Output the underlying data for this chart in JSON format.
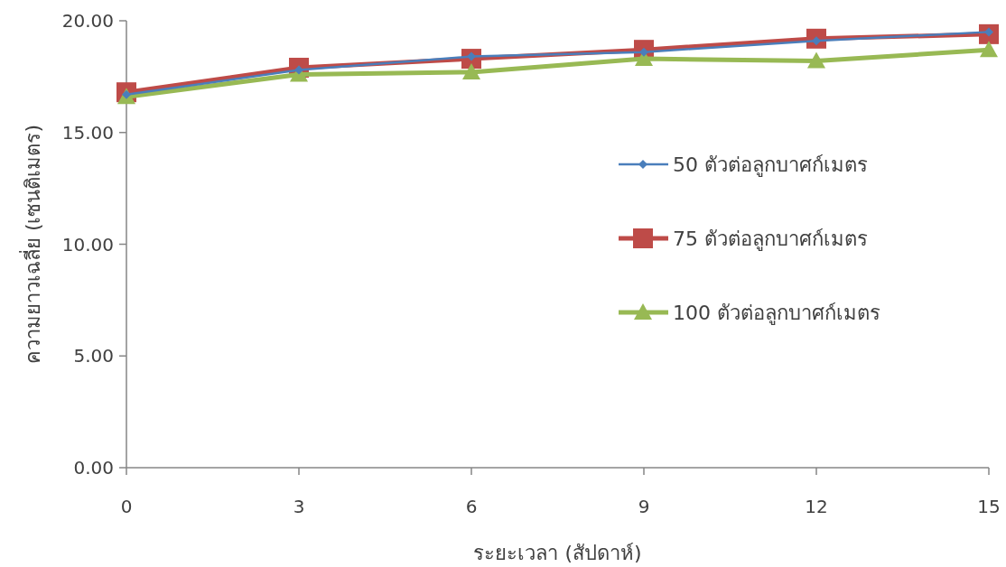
{
  "chart_data": {
    "type": "line",
    "xlabel": "ระยะเวลา (สัปดาห์)",
    "ylabel": "ความยาวเฉลี่ย (เซนติเมตร)",
    "x": [
      0,
      3,
      6,
      9,
      12,
      15
    ],
    "xlim": [
      0,
      15
    ],
    "xticks": [
      0,
      3,
      6,
      9,
      12,
      15
    ],
    "ylim": [
      0,
      20
    ],
    "yticks": [
      {
        "value": 0,
        "label": "0.00"
      },
      {
        "value": 5,
        "label": "5.00"
      },
      {
        "value": 10,
        "label": "10.00"
      },
      {
        "value": 15,
        "label": "15.00"
      },
      {
        "value": 20,
        "label": "20.00"
      }
    ],
    "legend": "right",
    "grid": false,
    "series": [
      {
        "name": "50 ตัวต่อลูกบาศก์เมตร",
        "color": "#4a7ebb",
        "marker": "diamond",
        "values": [
          16.7,
          17.8,
          18.4,
          18.6,
          19.1,
          19.5
        ]
      },
      {
        "name": "75 ตัวต่อลูกบาศก์เมตร",
        "color": "#be4b48",
        "marker": "square",
        "values": [
          16.8,
          17.9,
          18.3,
          18.7,
          19.2,
          19.4
        ]
      },
      {
        "name": "100 ตัวต่อลูกบาศก์เมตร",
        "color": "#98b954",
        "marker": "triangle",
        "values": [
          16.6,
          17.6,
          17.7,
          18.3,
          18.2,
          18.7
        ]
      }
    ]
  }
}
